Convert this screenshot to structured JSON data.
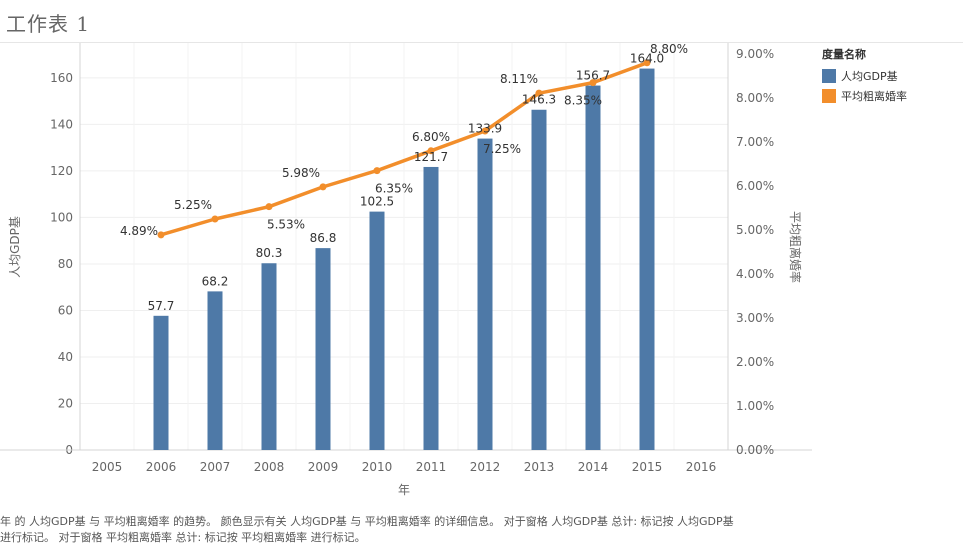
{
  "sheet_title": "工作表 1",
  "legend": {
    "title": "度量名称",
    "items": [
      {
        "label": "人均GDP基",
        "color": "#4e79a7"
      },
      {
        "label": "平均粗离婚率",
        "color": "#f28e2b"
      }
    ]
  },
  "caption": "年 的 人均GDP基 与 平均粗离婚率 的趋势。 颜色显示有关 人均GDP基 与 平均粗离婚率 的详细信息。 对于窗格 人均GDP基 总计: 标记按 人均GDP基 进行标记。 对于窗格 平均粗离婚率 总计: 标记按 平均粗离婚率 进行标记。",
  "chart_data": {
    "type": "bar",
    "title": "",
    "xlabel": "年",
    "ylabel": "人均GDP基",
    "y2label": "平均粗离婚率",
    "x_ticks": [
      "2005",
      "2006",
      "2007",
      "2008",
      "2009",
      "2010",
      "2011",
      "2012",
      "2013",
      "2014",
      "2015",
      "2016"
    ],
    "ylim": [
      0,
      175
    ],
    "y_ticks": [
      0,
      20,
      40,
      60,
      80,
      100,
      120,
      140,
      160
    ],
    "y2lim": [
      0,
      9.25
    ],
    "y2_ticks": [
      "0.00%",
      "1.00%",
      "2.00%",
      "3.00%",
      "4.00%",
      "5.00%",
      "6.00%",
      "7.00%",
      "8.00%",
      "9.00%"
    ],
    "grid": true,
    "series": [
      {
        "name": "人均GDP基",
        "type": "bar",
        "axis": "left",
        "x": [
          "2006",
          "2007",
          "2008",
          "2009",
          "2010",
          "2011",
          "2012",
          "2013",
          "2014",
          "2015"
        ],
        "values": [
          57.7,
          68.2,
          80.3,
          86.8,
          102.5,
          121.7,
          133.9,
          146.3,
          156.7,
          164.0
        ],
        "labels": [
          "57.7",
          "68.2",
          "80.3",
          "86.8",
          "102.5",
          "121.7",
          "133.9",
          "146.3",
          "156.7",
          "164.0"
        ]
      },
      {
        "name": "平均粗离婚率",
        "type": "line",
        "axis": "right",
        "x": [
          "2006",
          "2007",
          "2008",
          "2009",
          "2010",
          "2011",
          "2012",
          "2013",
          "2014",
          "2015"
        ],
        "values": [
          4.89,
          5.25,
          5.53,
          5.98,
          6.35,
          6.8,
          7.25,
          8.11,
          8.35,
          8.8
        ],
        "labels": [
          "4.89%",
          "5.25%",
          "5.53%",
          "5.98%",
          "6.35%",
          "6.80%",
          "7.25%",
          "8.11%",
          "8.35%",
          "8.80%"
        ]
      }
    ],
    "legend": "right"
  }
}
